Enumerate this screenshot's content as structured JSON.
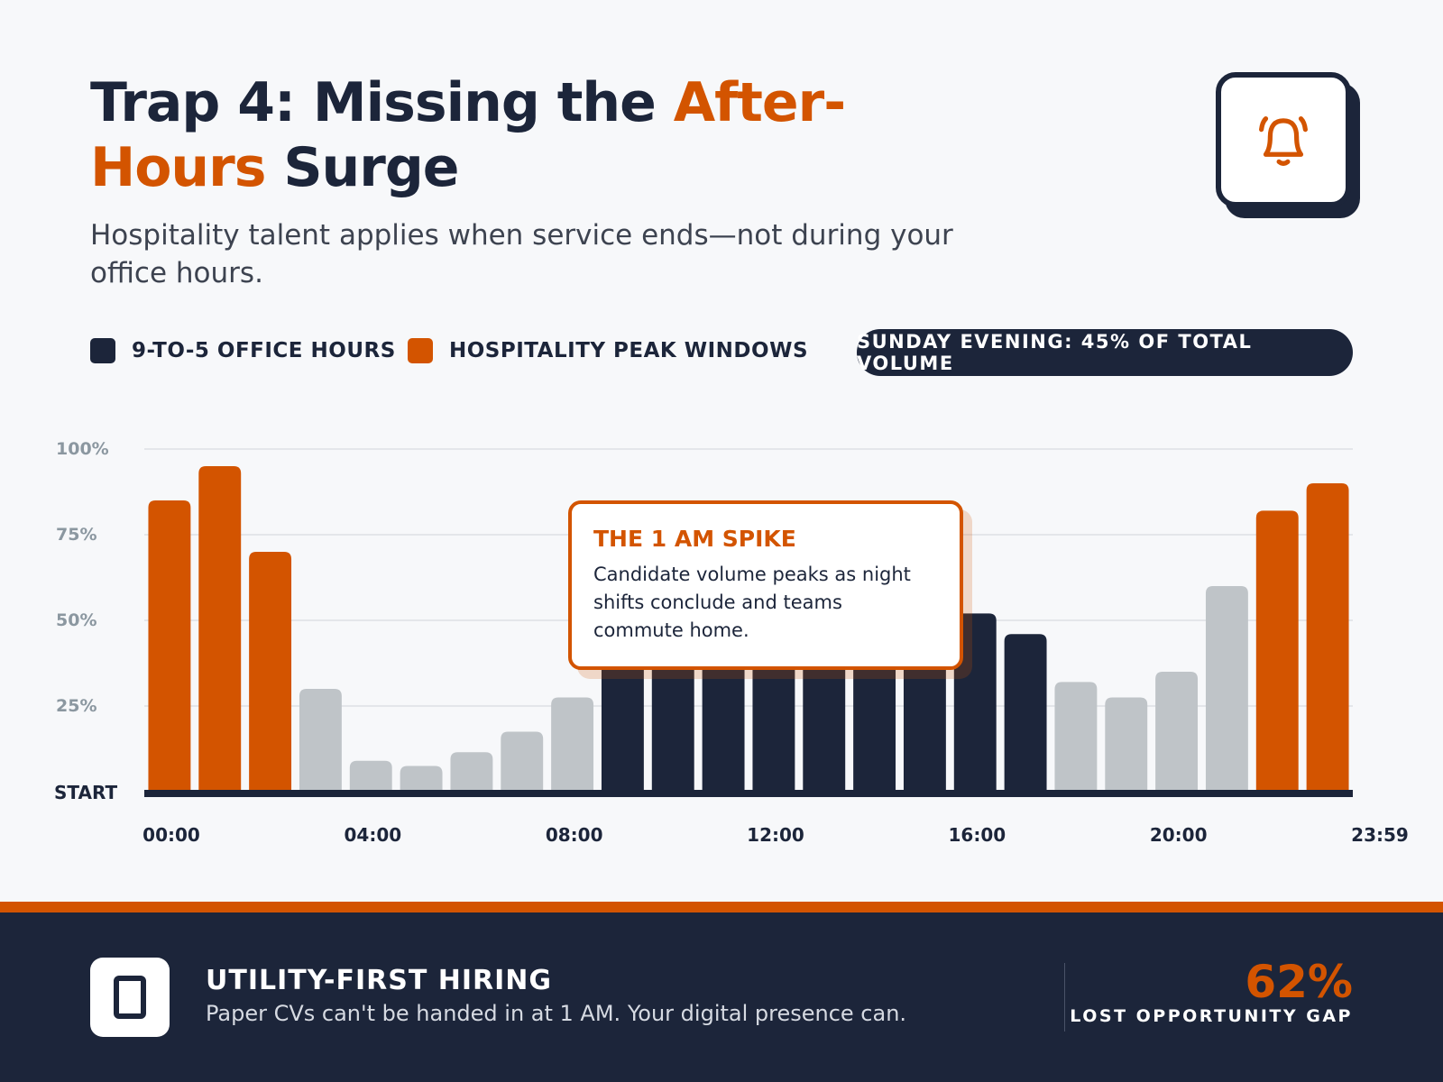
{
  "header": {
    "title_prefix": "Trap 4: Missing the ",
    "title_accent": "After-Hours",
    "title_suffix": " Surge",
    "subtitle": "Hospitality talent applies when service ends—not during your office hours.",
    "icon": "bell-ringing-icon"
  },
  "legend": [
    {
      "label": "9-TO-5 OFFICE HOURS",
      "color": "#1c253a"
    },
    {
      "label": "HOSPITALITY PEAK WINDOWS",
      "color": "#d35400"
    }
  ],
  "badge": "SUNDAY EVENING: 45% OF TOTAL VOLUME",
  "tooltip": {
    "title": "THE 1 AM SPIKE",
    "body": "Candidate volume peaks as night shifts conclude and teams commute home."
  },
  "chart_data": {
    "type": "bar",
    "ylim": [
      0,
      100
    ],
    "y_ticks": [
      {
        "v": 0,
        "label": "START"
      },
      {
        "v": 25,
        "label": "25%"
      },
      {
        "v": 50,
        "label": "50%"
      },
      {
        "v": 75,
        "label": "75%"
      },
      {
        "v": 100,
        "label": "100%"
      }
    ],
    "x_ticks": [
      "00:00",
      "04:00",
      "08:00",
      "12:00",
      "16:00",
      "20:00",
      "23:59"
    ],
    "grid": true,
    "categories": [
      "0",
      "1",
      "2",
      "3",
      "4",
      "5",
      "6",
      "7",
      "8",
      "9",
      "10",
      "11",
      "12",
      "13",
      "14",
      "15",
      "16",
      "17",
      "18",
      "19",
      "20",
      "21",
      "22",
      "23"
    ],
    "values": [
      85,
      95,
      70,
      30,
      9,
      7.5,
      11.5,
      17.5,
      27.5,
      40,
      44,
      47,
      50,
      52,
      54,
      56,
      52,
      46,
      32,
      27.5,
      35,
      60,
      82,
      90
    ],
    "groups": [
      "peak",
      "peak",
      "peak",
      "other",
      "other",
      "other",
      "other",
      "other",
      "other",
      "office",
      "office",
      "office",
      "office",
      "office",
      "office",
      "office",
      "office",
      "office",
      "other",
      "other",
      "other",
      "other",
      "peak",
      "peak"
    ],
    "colors": {
      "peak": "#d35400",
      "office": "#1c253a",
      "other": "#bfc4c8"
    }
  },
  "footer": {
    "icon": "tablet-icon",
    "heading": "UTILITY-FIRST HIRING",
    "text": "Paper CVs can't be handed in at 1 AM. Your digital presence can.",
    "stat": "62%",
    "stat_label": "LOST OPPORTUNITY GAP"
  }
}
